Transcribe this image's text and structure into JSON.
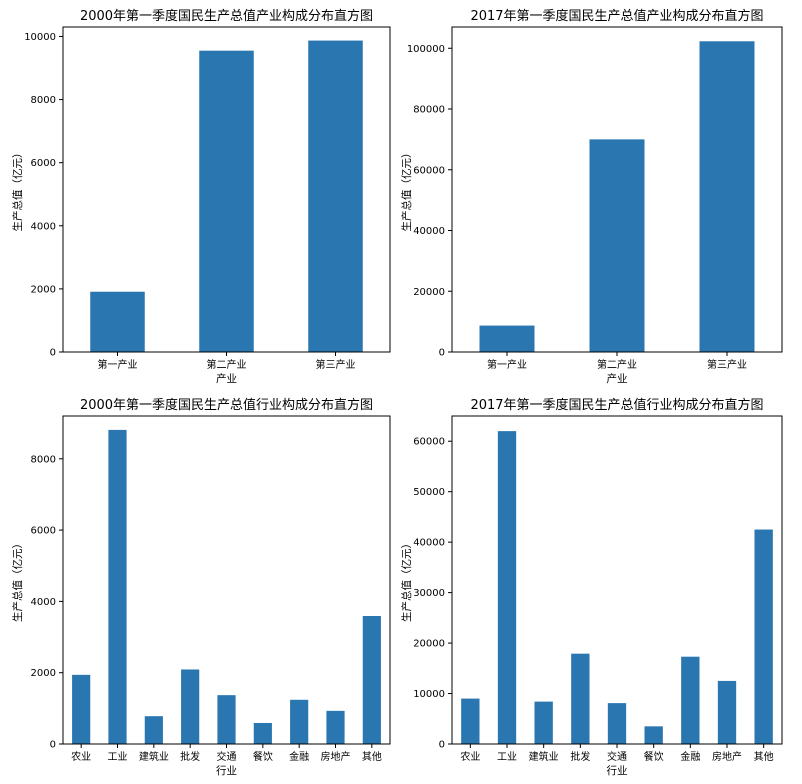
{
  "chart_data": [
    {
      "type": "bar",
      "title": "2000年第一季度国民生产总值产业构成分布直方图",
      "xlabel": "产业",
      "ylabel": "生产总值（亿元）",
      "categories": [
        "第一产业",
        "第二产业",
        "第三产业"
      ],
      "values": [
        1910,
        9550,
        9870
      ],
      "ylim": [
        0,
        10300
      ],
      "yticks": [
        0,
        2000,
        4000,
        6000,
        8000,
        10000
      ],
      "color": "#2a76b0"
    },
    {
      "type": "bar",
      "title": "2017年第一季度国民生产总值产业构成分布直方图",
      "xlabel": "产业",
      "ylabel": "生产总值（亿元）",
      "categories": [
        "第一产业",
        "第二产业",
        "第三产业"
      ],
      "values": [
        8700,
        70000,
        102300
      ],
      "ylim": [
        0,
        107000
      ],
      "yticks": [
        0,
        20000,
        40000,
        60000,
        80000,
        100000
      ],
      "color": "#2a76b0"
    },
    {
      "type": "bar",
      "title": "2000年第一季度国民生产总值行业构成分布直方图",
      "xlabel": "行业",
      "ylabel": "生产总值（亿元）",
      "categories": [
        "农业",
        "工业",
        "建筑业",
        "批发",
        "交通",
        "餐饮",
        "金融",
        "房地产",
        "其他"
      ],
      "values": [
        1940,
        8810,
        780,
        2090,
        1370,
        590,
        1240,
        930,
        3590
      ],
      "ylim": [
        0,
        9200
      ],
      "yticks": [
        0,
        2000,
        4000,
        6000,
        8000
      ],
      "color": "#2a76b0"
    },
    {
      "type": "bar",
      "title": "2017年第一季度国民生产总值行业构成分布直方图",
      "xlabel": "行业",
      "ylabel": "生产总值（亿元）",
      "categories": [
        "农业",
        "工业",
        "建筑业",
        "批发",
        "交通",
        "餐饮",
        "金融",
        "房地产",
        "其他"
      ],
      "values": [
        9000,
        62000,
        8400,
        17900,
        8100,
        3500,
        17300,
        12500,
        42500
      ],
      "ylim": [
        0,
        65000
      ],
      "yticks": [
        0,
        10000,
        20000,
        30000,
        40000,
        50000,
        60000
      ],
      "color": "#2a76b0"
    }
  ]
}
